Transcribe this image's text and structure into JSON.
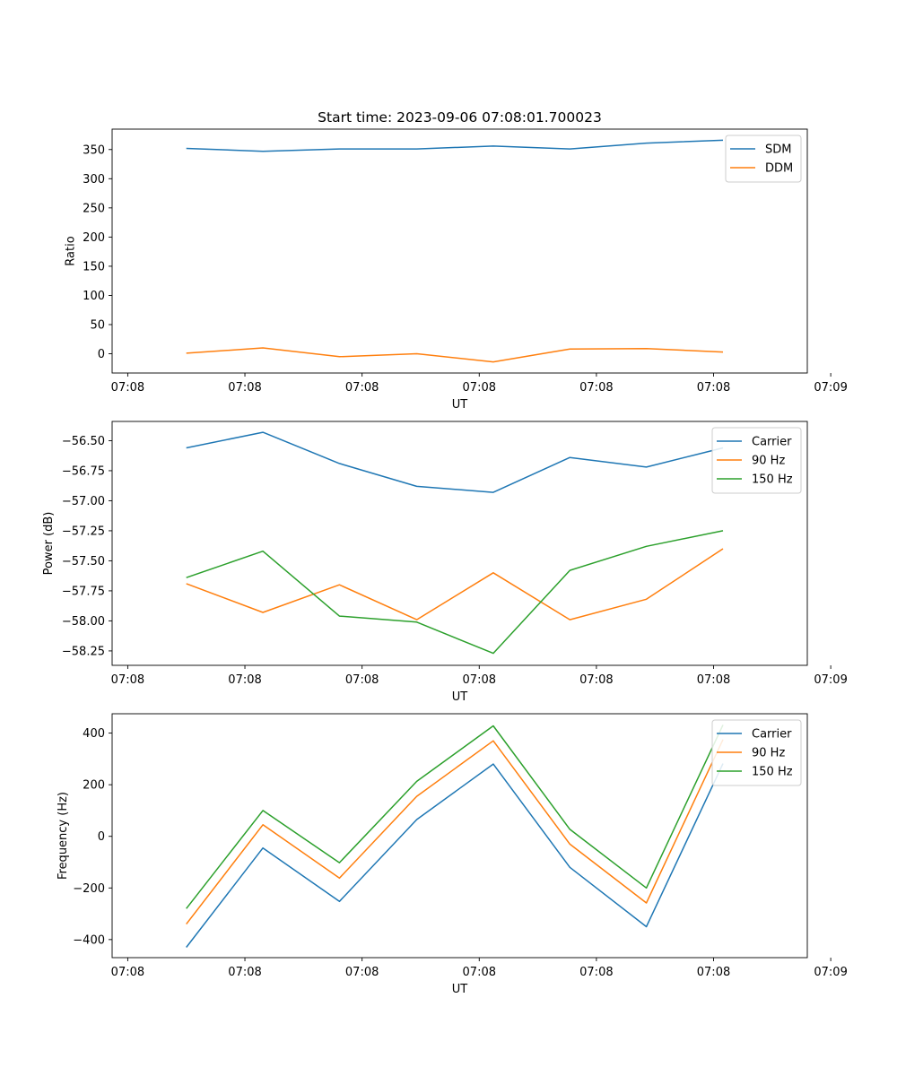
{
  "figure": {
    "title": "Start time: 2023-09-06 07:08:01.700023"
  },
  "colors": {
    "blue": "#1f77b4",
    "orange": "#ff7f0e",
    "green": "#2ca02c"
  },
  "chart_data": [
    {
      "type": "line",
      "title": "Start time: 2023-09-06 07:08:01.700023",
      "xlabel": "UT",
      "ylabel": "Ratio",
      "xlim": [
        -0.2,
        8.7
      ],
      "ylim": [
        -33,
        385
      ],
      "x_ticks": [
        0,
        1.5,
        3,
        4.5,
        6,
        7.5,
        9
      ],
      "x_tick_labels": [
        "07:08",
        "07:08",
        "07:08",
        "07:08",
        "07:08",
        "07:08",
        "07:09"
      ],
      "y_ticks": [
        0,
        50,
        100,
        150,
        200,
        250,
        300,
        350
      ],
      "y_tick_labels": [
        "0",
        "50",
        "100",
        "150",
        "200",
        "250",
        "300",
        "350"
      ],
      "legend_position": "upper-right",
      "x": [
        0.75,
        1.73,
        2.71,
        3.7,
        4.68,
        5.66,
        6.64,
        7.62
      ],
      "series": [
        {
          "name": "SDM",
          "color": "#1f77b4",
          "values": [
            352,
            347,
            351,
            351,
            356,
            351,
            361,
            366
          ]
        },
        {
          "name": "DDM",
          "color": "#ff7f0e",
          "values": [
            1,
            10,
            -5,
            0,
            -14,
            8,
            9,
            3
          ]
        }
      ]
    },
    {
      "type": "line",
      "xlabel": "UT",
      "ylabel": "Power (dB)",
      "xlim": [
        -0.2,
        8.7
      ],
      "ylim": [
        -58.37,
        -56.34
      ],
      "x_ticks": [
        0,
        1.5,
        3,
        4.5,
        6,
        7.5,
        9
      ],
      "x_tick_labels": [
        "07:08",
        "07:08",
        "07:08",
        "07:08",
        "07:08",
        "07:08",
        "07:09"
      ],
      "y_ticks": [
        -58.25,
        -58.0,
        -57.75,
        -57.5,
        -57.25,
        -57.0,
        -56.75,
        -56.5
      ],
      "y_tick_labels": [
        "−58.25",
        "−58.00",
        "−57.75",
        "−57.50",
        "−57.25",
        "−57.00",
        "−56.75",
        "−56.50"
      ],
      "legend_position": "upper-right",
      "x": [
        0.75,
        1.73,
        2.71,
        3.7,
        4.68,
        5.66,
        6.64,
        7.62
      ],
      "series": [
        {
          "name": "Carrier",
          "color": "#1f77b4",
          "values": [
            -56.56,
            -56.43,
            -56.69,
            -56.88,
            -56.93,
            -56.64,
            -56.72,
            -56.56
          ]
        },
        {
          "name": "90 Hz",
          "color": "#ff7f0e",
          "values": [
            -57.69,
            -57.93,
            -57.7,
            -57.99,
            -57.6,
            -57.99,
            -57.82,
            -57.4
          ]
        },
        {
          "name": "150 Hz",
          "color": "#2ca02c",
          "values": [
            -57.64,
            -57.42,
            -57.96,
            -58.01,
            -58.27,
            -57.58,
            -57.38,
            -57.25
          ]
        }
      ]
    },
    {
      "type": "line",
      "xlabel": "UT",
      "ylabel": "Frequency (Hz)",
      "xlim": [
        -0.2,
        8.7
      ],
      "ylim": [
        -470,
        475
      ],
      "x_ticks": [
        0,
        1.5,
        3,
        4.5,
        6,
        7.5,
        9
      ],
      "x_tick_labels": [
        "07:08",
        "07:08",
        "07:08",
        "07:08",
        "07:08",
        "07:08",
        "07:09"
      ],
      "y_ticks": [
        -400,
        -200,
        0,
        200,
        400
      ],
      "y_tick_labels": [
        "−400",
        "−200",
        "0",
        "200",
        "400"
      ],
      "legend_position": "upper-right",
      "x": [
        0.75,
        1.73,
        2.71,
        3.7,
        4.68,
        5.66,
        6.64,
        7.62
      ],
      "series": [
        {
          "name": "Carrier",
          "color": "#1f77b4",
          "values": [
            -430,
            -45,
            -252,
            65,
            280,
            -120,
            -350,
            282
          ]
        },
        {
          "name": "90 Hz",
          "color": "#ff7f0e",
          "values": [
            -340,
            45,
            -162,
            155,
            370,
            -30,
            -258,
            375
          ]
        },
        {
          "name": "150 Hz",
          "color": "#2ca02c",
          "values": [
            -280,
            100,
            -102,
            213,
            428,
            27,
            -200,
            432
          ]
        }
      ]
    }
  ]
}
